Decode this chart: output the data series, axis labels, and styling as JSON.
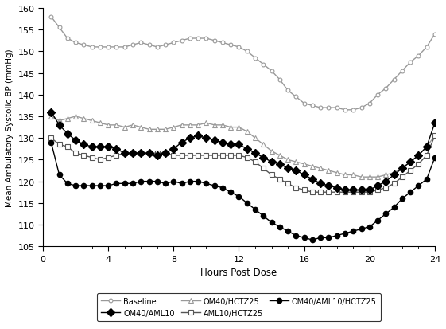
{
  "hours": [
    0.5,
    1,
    1.5,
    2,
    2.5,
    3,
    3.5,
    4,
    4.5,
    5,
    5.5,
    6,
    6.5,
    7,
    7.5,
    8,
    8.5,
    9,
    9.5,
    10,
    10.5,
    11,
    11.5,
    12,
    12.5,
    13,
    13.5,
    14,
    14.5,
    15,
    15.5,
    16,
    16.5,
    17,
    17.5,
    18,
    18.5,
    19,
    19.5,
    20,
    20.5,
    21,
    21.5,
    22,
    22.5,
    23,
    23.5,
    24
  ],
  "baseline": [
    158,
    155.5,
    153,
    152,
    151.5,
    151,
    151,
    151,
    151,
    151,
    151.5,
    152,
    151.5,
    151,
    151.5,
    152,
    152.5,
    153,
    153,
    153,
    152.5,
    152,
    151.5,
    151,
    150,
    148.5,
    147,
    145.5,
    143.5,
    141,
    139.5,
    138,
    137.5,
    137,
    137,
    137,
    136.5,
    136.5,
    137,
    138,
    140,
    141.5,
    143.5,
    145.5,
    147.5,
    149,
    151,
    154
  ],
  "om40_aml10": [
    136,
    133,
    131,
    129.5,
    128.5,
    128,
    128,
    128,
    127.5,
    126.5,
    126.5,
    126.5,
    126.5,
    126,
    126.5,
    127.5,
    129,
    130,
    130.5,
    130,
    129.5,
    129,
    128.5,
    128.5,
    127.5,
    126.5,
    125.5,
    124.5,
    124,
    123,
    122.5,
    121.5,
    120.5,
    119.5,
    119,
    118.5,
    118,
    118,
    118,
    118,
    119,
    120,
    121.5,
    123,
    124.5,
    126,
    128,
    133.5
  ],
  "om40_hctz25": [
    135,
    134,
    134.5,
    135,
    134.5,
    134,
    133.5,
    133,
    133,
    132.5,
    133,
    132.5,
    132,
    132,
    132,
    132.5,
    133,
    133,
    133,
    133.5,
    133,
    133,
    132.5,
    132.5,
    131.5,
    130,
    128.5,
    127,
    126,
    125,
    124.5,
    124,
    123.5,
    123,
    122.5,
    122,
    121.5,
    121.5,
    121,
    121,
    121,
    121.5,
    122,
    123,
    124.5,
    126,
    128,
    130.5
  ],
  "aml10_hctz25": [
    130,
    128.5,
    128,
    126.5,
    126,
    125.5,
    125,
    125.5,
    126,
    126.5,
    126.5,
    126.5,
    126.5,
    126.5,
    126.5,
    126,
    126,
    126,
    126,
    126,
    126,
    126,
    126,
    126,
    125.5,
    124.5,
    123,
    121.5,
    120.5,
    119.5,
    118.5,
    118,
    117.5,
    117.5,
    117.5,
    117.5,
    117.5,
    117.5,
    117.5,
    117.5,
    118,
    118.5,
    119.5,
    121,
    122.5,
    124,
    126,
    130.5
  ],
  "om40_aml10_hctz25": [
    129,
    121.5,
    119.5,
    119,
    119,
    119,
    119,
    119,
    119.5,
    119.5,
    119.5,
    120,
    120,
    120,
    119.5,
    120,
    119.5,
    120,
    120,
    119.5,
    119,
    118.5,
    117.5,
    116.5,
    115,
    113.5,
    112,
    110.5,
    109.5,
    108.5,
    107.5,
    107,
    106.5,
    107,
    107,
    107.5,
    108,
    108.5,
    109,
    109.5,
    111,
    112.5,
    114,
    116,
    117.5,
    119,
    120.5,
    125.5
  ],
  "ylim": [
    105,
    160
  ],
  "xlim": [
    0,
    24
  ],
  "ylabel": "Mean Ambulatory Systolic BP (mmHg)",
  "xlabel": "Hours Post Dose",
  "xticks": [
    0,
    4,
    8,
    12,
    16,
    20,
    24
  ],
  "yticks": [
    105,
    110,
    115,
    120,
    125,
    130,
    135,
    140,
    145,
    150,
    155,
    160
  ],
  "color_gray": "#999999",
  "color_black": "#000000",
  "color_darkgray": "#555555"
}
